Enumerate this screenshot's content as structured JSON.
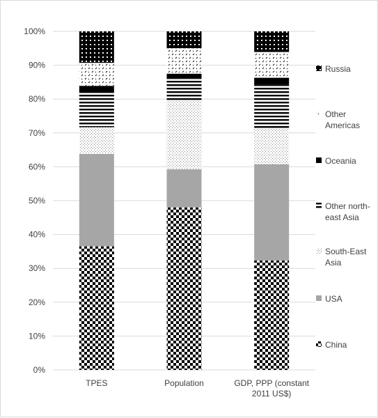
{
  "chart_data": {
    "type": "bar",
    "stacked": true,
    "percent": true,
    "categories": [
      "TPES",
      "Population",
      "GDP, PPP (constant 2011 US$)"
    ],
    "category_lines": [
      [
        "TPES"
      ],
      [
        "Population"
      ],
      [
        "GDP, PPP (constant",
        "2011 US$)"
      ]
    ],
    "series": [
      {
        "name": "China",
        "pattern": "checker",
        "values": [
          36.5,
          48.0,
          32.3
        ]
      },
      {
        "name": "USA",
        "pattern": "gray",
        "values": [
          27.3,
          11.3,
          28.4
        ]
      },
      {
        "name": "South-East Asia",
        "pattern": "dots",
        "values": [
          7.9,
          20.1,
          10.8
        ]
      },
      {
        "name": "Other north-east Asia",
        "pattern": "hstripes",
        "values": [
          10.4,
          6.8,
          12.7
        ]
      },
      {
        "name": "Oceania",
        "pattern": "solid",
        "values": [
          1.8,
          1.3,
          2.1
        ]
      },
      {
        "name": "Other Americas",
        "pattern": "dashes",
        "values": [
          6.8,
          7.5,
          7.6
        ]
      },
      {
        "name": "Russia",
        "pattern": "crosshatch",
        "values": [
          9.3,
          5.0,
          6.1
        ]
      }
    ],
    "legend_lines": {
      "China": [
        "China"
      ],
      "USA": [
        "USA"
      ],
      "South-East Asia": [
        "South-East",
        "Asia"
      ],
      "Other north-east Asia": [
        "Other north-",
        "east Asia"
      ],
      "Oceania": [
        "Oceania"
      ],
      "Other Americas": [
        "Other",
        "Americas"
      ],
      "Russia": [
        "Russia"
      ]
    },
    "ylim": [
      0,
      100
    ],
    "yticks": [
      0,
      10,
      20,
      30,
      40,
      50,
      60,
      70,
      80,
      90,
      100
    ],
    "ytick_labels": [
      "0%",
      "10%",
      "20%",
      "30%",
      "40%",
      "50%",
      "60%",
      "70%",
      "80%",
      "90%",
      "100%"
    ],
    "grid": true,
    "legend_position": "right",
    "title": "",
    "xlabel": "",
    "ylabel": ""
  }
}
